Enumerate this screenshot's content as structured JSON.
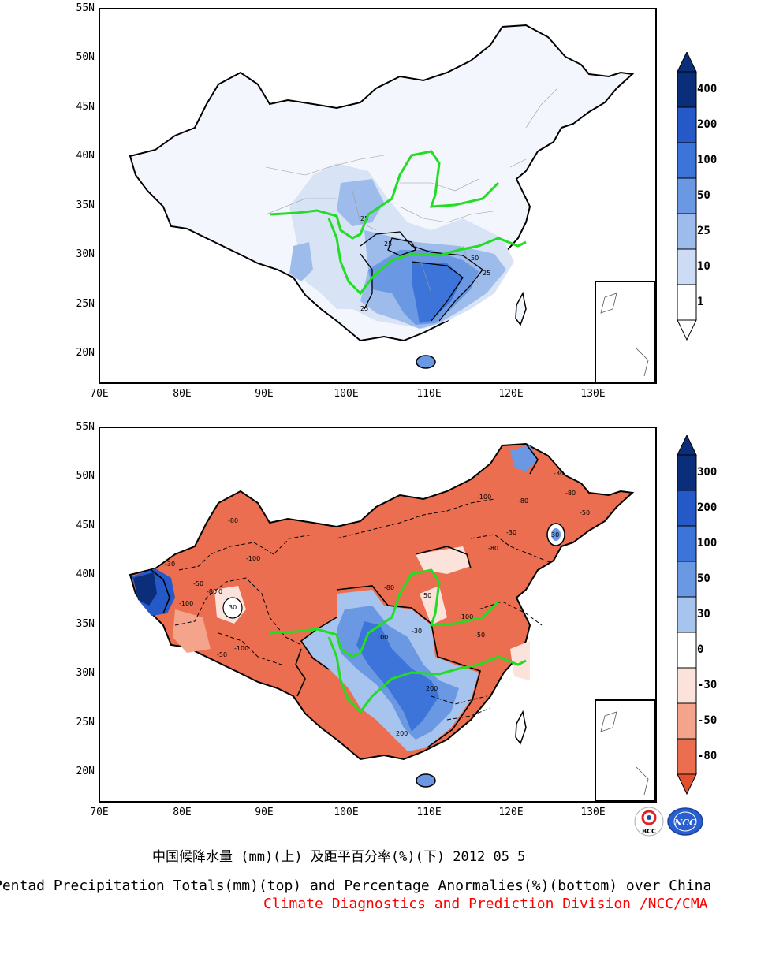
{
  "panels": [
    {
      "id": "top",
      "lat_labels": [
        "55N",
        "50N",
        "45N",
        "40N",
        "35N",
        "30N",
        "25N",
        "20N"
      ],
      "lon_labels": [
        "70E",
        "80E",
        "90E",
        "100E",
        "110E",
        "120E",
        "130E"
      ],
      "colorbar": {
        "levels": [
          "400",
          "200",
          "100",
          "50",
          "25",
          "10",
          "1"
        ],
        "colors": [
          "#0b2e7a",
          "#2659c8",
          "#3d74d9",
          "#6b98e3",
          "#9dbcec",
          "#cddcf4",
          "#ffffff"
        ]
      },
      "contour_labels": [
        "25",
        "25",
        "50",
        "25",
        "25"
      ]
    },
    {
      "id": "bottom",
      "lat_labels": [
        "55N",
        "50N",
        "45N",
        "40N",
        "35N",
        "30N",
        "25N",
        "20N"
      ],
      "lon_labels": [
        "70E",
        "80E",
        "90E",
        "100E",
        "110E",
        "120E",
        "130E"
      ],
      "colorbar": {
        "levels": [
          "300",
          "200",
          "100",
          "50",
          "30",
          "0",
          "-30",
          "-50",
          "-80"
        ],
        "colors": [
          "#0b2e7a",
          "#2659c8",
          "#3d74d9",
          "#6b98e3",
          "#a6c4ee",
          "#ffffff",
          "#fbe3dc",
          "#f5a48c",
          "#ea6e4f",
          "#e25030"
        ]
      },
      "contour_labels": [
        "-80",
        "-100",
        "-30",
        "-50",
        "0",
        "-100",
        "30",
        "-80",
        "-50",
        "-100",
        "100",
        "200",
        "200",
        "50",
        "-30",
        "-80",
        "-100",
        "-50",
        "30",
        "-80",
        "-100",
        "-30",
        "-80",
        "-50",
        "-30",
        "-80"
      ]
    }
  ],
  "caption": {
    "line1": "中国候降水量 (mm)(上) 及距平百分率(%)(下) 2012 05 5",
    "line2": "Pentad Precipitation Totals(mm)(top) and Percentage Anormalies(%)(bottom) over China",
    "line3": "Climate Diagnostics and Prediction Division /NCC/CMA",
    "line3_color": "#ff0000"
  },
  "logos": {
    "bcc": "BCC",
    "ncc": "NCC"
  }
}
